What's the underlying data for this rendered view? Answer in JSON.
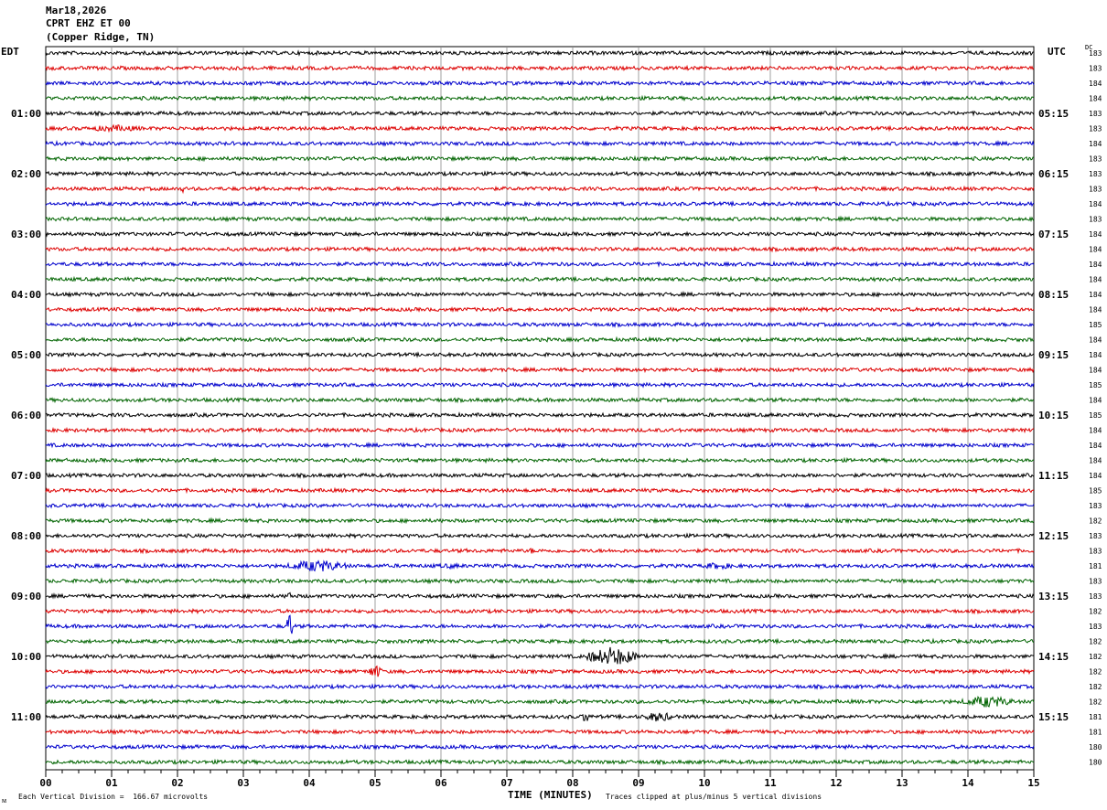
{
  "header": {
    "date": "Mar18,2026",
    "station": "CPRT EHZ ET 00",
    "location": "(Copper Ridge, TN)"
  },
  "left_axis_title": "EDT",
  "right_axis_title": "UTC",
  "dc_title": "DC",
  "x_axis_title": "TIME (MINUTES)",
  "footer": {
    "scale_note": "Each Vertical Division =  166.67 microvolts",
    "clip_note": "Traces clipped at plus/minus 5 vertical divisions",
    "logo_glyph": "ᴍ"
  },
  "colors": {
    "black": "#000000",
    "red": "#dd0000",
    "blue": "#0000cc",
    "green": "#006400",
    "grid": "#888888"
  },
  "chart_data": {
    "type": "line",
    "title": "",
    "xlabel": "TIME (MINUTES)",
    "xlim": [
      0,
      15
    ],
    "x_ticks": [
      "00",
      "01",
      "02",
      "03",
      "04",
      "05",
      "06",
      "07",
      "08",
      "09",
      "10",
      "11",
      "12",
      "13",
      "14",
      "15"
    ],
    "minutes_per_trace": 15,
    "left_hour_labels": [
      "01:00",
      "02:00",
      "03:00",
      "04:00",
      "05:00",
      "06:00",
      "07:00",
      "08:00",
      "09:00",
      "10:00",
      "11:00"
    ],
    "right_hour_labels": [
      "05:15",
      "06:15",
      "07:15",
      "08:15",
      "09:15",
      "10:15",
      "11:15",
      "12:15",
      "13:15",
      "14:15",
      "15:15"
    ],
    "trace_colors": [
      "black",
      "red",
      "blue",
      "green"
    ],
    "dc_offsets": [
      183,
      183,
      184,
      184,
      183,
      183,
      184,
      183,
      183,
      183,
      184,
      183,
      184,
      184,
      184,
      184,
      184,
      184,
      185,
      184,
      184,
      184,
      185,
      184,
      185,
      184,
      184,
      184,
      184,
      185,
      183,
      182,
      183,
      183,
      181,
      183,
      183,
      182,
      183,
      182,
      182,
      182,
      182,
      182,
      181,
      181,
      180,
      180
    ],
    "events": [
      {
        "trace": 34,
        "minute_start": 3.65,
        "minute_end": 4.6,
        "amplitude": 7
      },
      {
        "trace": 34,
        "minute_start": 5.8,
        "minute_end": 6.5,
        "amplitude": 3
      },
      {
        "trace": 34,
        "minute_start": 9.9,
        "minute_end": 10.5,
        "amplitude": 4
      },
      {
        "trace": 36,
        "minute_start": 3.68,
        "minute_end": 3.72,
        "amplitude": 12
      },
      {
        "trace": 38,
        "minute_start": 3.66,
        "minute_end": 3.75,
        "amplitude": 18
      },
      {
        "trace": 40,
        "minute_start": 8.2,
        "minute_end": 9.0,
        "amplitude": 11
      },
      {
        "trace": 41,
        "minute_start": 4.9,
        "minute_end": 5.1,
        "amplitude": 9
      },
      {
        "trace": 43,
        "minute_start": 13.9,
        "minute_end": 14.7,
        "amplitude": 7
      },
      {
        "trace": 44,
        "minute_start": 8.15,
        "minute_end": 8.25,
        "amplitude": 9
      },
      {
        "trace": 44,
        "minute_start": 9.05,
        "minute_end": 9.55,
        "amplitude": 6
      },
      {
        "trace": 1,
        "minute_start": 2.75,
        "minute_end": 2.85,
        "amplitude": 3
      },
      {
        "trace": 5,
        "minute_start": 0.5,
        "minute_end": 1.6,
        "amplitude": 4
      },
      {
        "trace": 9,
        "minute_start": 2.05,
        "minute_end": 2.1,
        "amplitude": 5
      },
      {
        "trace": 33,
        "minute_start": 7.35,
        "minute_end": 7.4,
        "amplitude": 5
      }
    ]
  }
}
